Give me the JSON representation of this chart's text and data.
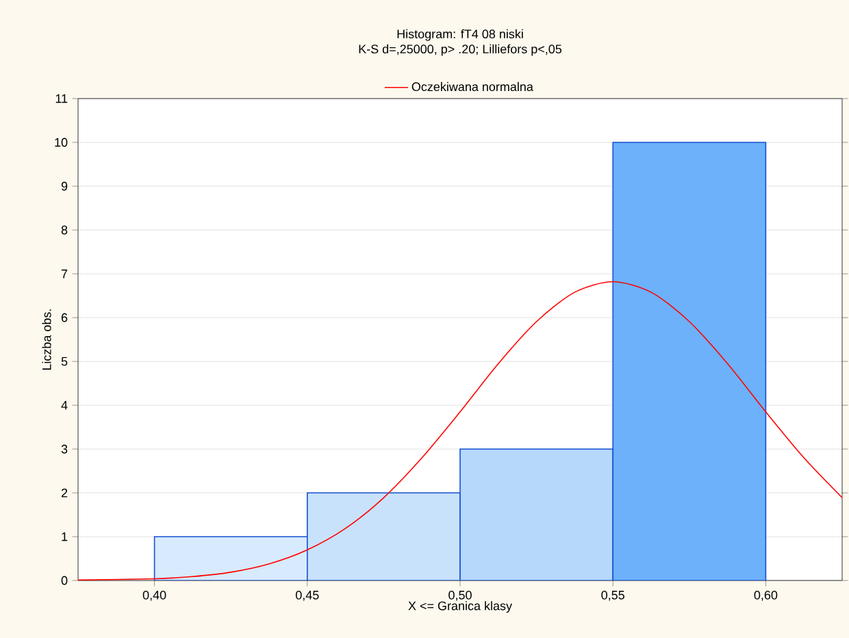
{
  "chart_data": {
    "type": "histogram",
    "title": "Histogram: fT4 08 niski",
    "subtitle": "K-S d=,25000, p> .20; Lilliefors p<,05",
    "xlabel": "X <= Granica klasy",
    "ylabel": "Liczba obs.",
    "bins": [
      0.4,
      0.45,
      0.5,
      0.55,
      0.6
    ],
    "values": [
      1,
      2,
      3,
      10
    ],
    "colors": [
      "#d8eafd",
      "#c8e2fc",
      "#b5d8fb",
      "#6db1fa"
    ],
    "series": [
      {
        "type": "line",
        "name": "Oczekiwana normalna",
        "color": "#ff0000",
        "x": [
          0.375,
          0.4,
          0.4125,
          0.425,
          0.4375,
          0.45,
          0.4625,
          0.475,
          0.4875,
          0.5,
          0.5125,
          0.525,
          0.5375,
          0.55,
          0.5625,
          0.575,
          0.5875,
          0.6,
          0.6125,
          0.625
        ],
        "values": [
          0.01,
          0.04,
          0.09,
          0.19,
          0.38,
          0.7,
          1.19,
          1.89,
          2.8,
          3.85,
          4.95,
          5.91,
          6.58,
          6.82,
          6.58,
          5.91,
          4.95,
          3.85,
          2.8,
          1.89
        ]
      }
    ],
    "xlim": [
      0.375,
      0.625
    ],
    "ylim": [
      0,
      11
    ],
    "xticks": [
      {
        "value": 0.4,
        "label": "0,40"
      },
      {
        "value": 0.45,
        "label": "0,45"
      },
      {
        "value": 0.5,
        "label": "0,50"
      },
      {
        "value": 0.55,
        "label": "0,55"
      },
      {
        "value": 0.6,
        "label": "0,60"
      }
    ],
    "yticks": [
      0,
      1,
      2,
      3,
      4,
      5,
      6,
      7,
      8,
      9,
      10,
      11
    ],
    "grid": "y",
    "legend": "top"
  }
}
